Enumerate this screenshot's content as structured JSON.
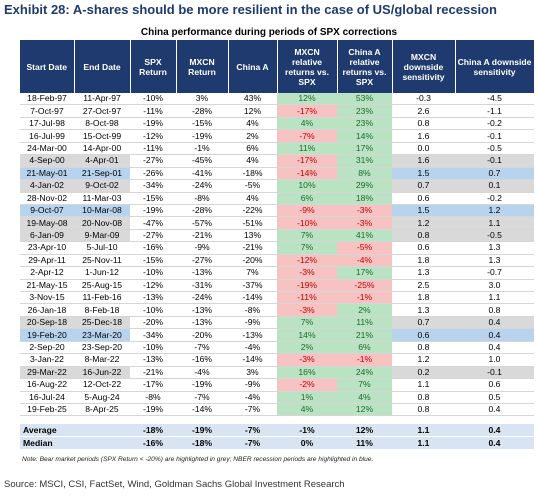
{
  "title": "Exhibit 28: A-shares should be more resilient in the case of US/global recession",
  "subtitle": "China performance during periods of SPX corrections",
  "headers": [
    "Start Date",
    "End Date",
    "SPX Return",
    "MXCN Return",
    "China A",
    "MXCN relative returns vs. SPX",
    "China A relative returns vs. SPX",
    "MXCN downside sensitivity",
    "China A downside sensitivity"
  ],
  "rows": [
    {
      "shade": "",
      "cells": [
        "18-Feb-97",
        "11-Apr-97",
        "-10%",
        "3%",
        "43%",
        "12%",
        "53%",
        "-0.3",
        "-4.5"
      ]
    },
    {
      "shade": "",
      "cells": [
        "7-Oct-97",
        "27-Oct-97",
        "-11%",
        "-28%",
        "12%",
        "-17%",
        "23%",
        "2.6",
        "-1.1"
      ]
    },
    {
      "shade": "",
      "cells": [
        "17-Jul-98",
        "8-Oct-98",
        "-19%",
        "-15%",
        "4%",
        "4%",
        "23%",
        "0.8",
        "-0.2"
      ]
    },
    {
      "shade": "",
      "cells": [
        "16-Jul-99",
        "15-Oct-99",
        "-12%",
        "-19%",
        "2%",
        "-7%",
        "14%",
        "1.6",
        "-0.1"
      ]
    },
    {
      "shade": "",
      "cells": [
        "24-Mar-00",
        "14-Apr-00",
        "-11%",
        "-1%",
        "6%",
        "11%",
        "17%",
        "0.0",
        "-0.5"
      ]
    },
    {
      "shade": "grey",
      "cells": [
        "4-Sep-00",
        "4-Apr-01",
        "-27%",
        "-45%",
        "4%",
        "-17%",
        "31%",
        "1.6",
        "-0.1"
      ]
    },
    {
      "shade": "blue",
      "cells": [
        "21-May-01",
        "21-Sep-01",
        "-26%",
        "-41%",
        "-18%",
        "-14%",
        "8%",
        "1.5",
        "0.7"
      ]
    },
    {
      "shade": "grey",
      "cells": [
        "4-Jan-02",
        "9-Oct-02",
        "-34%",
        "-24%",
        "-5%",
        "10%",
        "29%",
        "0.7",
        "0.1"
      ]
    },
    {
      "shade": "",
      "cells": [
        "28-Nov-02",
        "11-Mar-03",
        "-15%",
        "-8%",
        "4%",
        "6%",
        "18%",
        "0.6",
        "-0.2"
      ]
    },
    {
      "shade": "blue",
      "cells": [
        "9-Oct-07",
        "10-Mar-08",
        "-19%",
        "-28%",
        "-22%",
        "-9%",
        "-3%",
        "1.5",
        "1.2"
      ]
    },
    {
      "shade": "grey",
      "cells": [
        "19-May-08",
        "20-Nov-08",
        "-47%",
        "-57%",
        "-51%",
        "-10%",
        "-3%",
        "1.2",
        "1.1"
      ]
    },
    {
      "shade": "grey",
      "cells": [
        "6-Jan-09",
        "9-Mar-09",
        "-27%",
        "-21%",
        "13%",
        "7%",
        "41%",
        "0.8",
        "-0.5"
      ]
    },
    {
      "shade": "",
      "cells": [
        "23-Apr-10",
        "5-Jul-10",
        "-16%",
        "-9%",
        "-21%",
        "7%",
        "-5%",
        "0.6",
        "1.3"
      ]
    },
    {
      "shade": "",
      "cells": [
        "29-Apr-11",
        "25-Nov-11",
        "-15%",
        "-27%",
        "-20%",
        "-12%",
        "-4%",
        "1.8",
        "1.3"
      ]
    },
    {
      "shade": "",
      "cells": [
        "2-Apr-12",
        "1-Jun-12",
        "-10%",
        "-13%",
        "7%",
        "-3%",
        "17%",
        "1.3",
        "-0.7"
      ]
    },
    {
      "shade": "",
      "cells": [
        "21-May-15",
        "25-Aug-15",
        "-12%",
        "-31%",
        "-37%",
        "-19%",
        "-25%",
        "2.5",
        "3.0"
      ]
    },
    {
      "shade": "",
      "cells": [
        "3-Nov-15",
        "11-Feb-16",
        "-13%",
        "-24%",
        "-14%",
        "-11%",
        "-1%",
        "1.8",
        "1.1"
      ]
    },
    {
      "shade": "",
      "cells": [
        "26-Jan-18",
        "8-Feb-18",
        "-10%",
        "-13%",
        "-8%",
        "-3%",
        "2%",
        "1.3",
        "0.8"
      ]
    },
    {
      "shade": "grey",
      "cells": [
        "20-Sep-18",
        "25-Dec-18",
        "-20%",
        "-13%",
        "-9%",
        "7%",
        "11%",
        "0.7",
        "0.4"
      ]
    },
    {
      "shade": "blue",
      "cells": [
        "19-Feb-20",
        "23-Mar-20",
        "-34%",
        "-20%",
        "-13%",
        "14%",
        "21%",
        "0.6",
        "0.4"
      ]
    },
    {
      "shade": "",
      "cells": [
        "2-Sep-20",
        "23-Sep-20",
        "-10%",
        "-7%",
        "-4%",
        "2%",
        "6%",
        "0.8",
        "0.4"
      ]
    },
    {
      "shade": "",
      "cells": [
        "3-Jan-22",
        "8-Mar-22",
        "-13%",
        "-16%",
        "-14%",
        "-3%",
        "-1%",
        "1.2",
        "1.0"
      ]
    },
    {
      "shade": "grey",
      "cells": [
        "29-Mar-22",
        "16-Jun-22",
        "-21%",
        "-4%",
        "3%",
        "16%",
        "24%",
        "0.2",
        "-0.1"
      ]
    },
    {
      "shade": "",
      "cells": [
        "16-Aug-22",
        "12-Oct-22",
        "-17%",
        "-19%",
        "-9%",
        "-2%",
        "7%",
        "1.1",
        "0.6"
      ]
    },
    {
      "shade": "",
      "cells": [
        "16-Jul-24",
        "5-Aug-24",
        "-8%",
        "-7%",
        "-4%",
        "1%",
        "4%",
        "0.8",
        "0.5"
      ]
    },
    {
      "shade": "",
      "cells": [
        "19-Feb-25",
        "8-Apr-25",
        "-19%",
        "-14%",
        "-7%",
        "4%",
        "12%",
        "0.8",
        "0.4"
      ]
    }
  ],
  "summary": [
    {
      "cells": [
        "Average",
        "",
        "-18%",
        "-19%",
        "-7%",
        "-1%",
        "12%",
        "1.1",
        "0.4"
      ]
    },
    {
      "cells": [
        "Median",
        "",
        "-16%",
        "-18%",
        "-7%",
        "0%",
        "11%",
        "1.1",
        "0.4"
      ]
    }
  ],
  "note": "Note: Bear market periods (SPX Return < -20%) are highlighted in grey; NBER recession periods are highlighted in blue.",
  "source": "Source: MSCI, CSI, FactSet, Wind, Goldman Sachs Global Investment Research",
  "colors": {
    "header": "#1f3a6e",
    "grey": "#d9d9d9",
    "blue": "#b7d3ee",
    "positive": "#b9e3c2",
    "negative": "#f6c2c2"
  }
}
